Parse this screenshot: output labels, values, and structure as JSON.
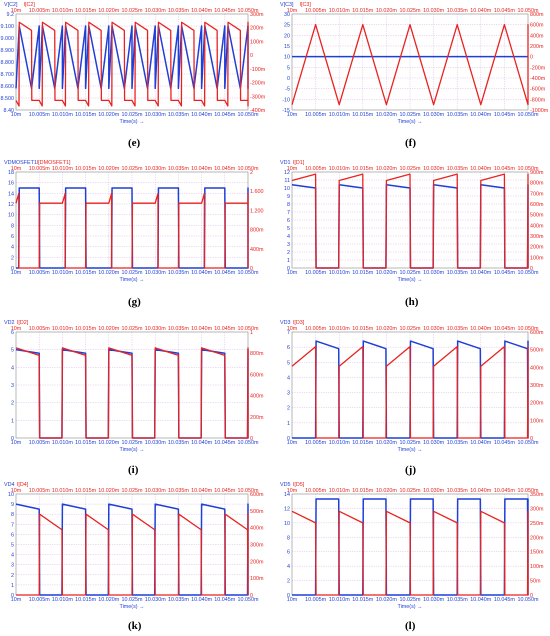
{
  "colors": {
    "blue": "#1f3fd6",
    "red": "#e8231f",
    "grid": "#c58fd6",
    "frame": "#888888"
  },
  "time_axis": {
    "ticks_top": [
      "10m",
      "10.005m",
      "10.010m",
      "10.015m",
      "10.020m",
      "10.025m",
      "10.030m",
      "10.035m",
      "10.040m",
      "10.045m",
      "10.050m"
    ],
    "ticks_bottom": [
      "10m",
      "10.005m",
      "10.010m",
      "10.015m",
      "10.020m",
      "10.025m",
      "10.030m",
      "10.035m",
      "10.040m",
      "10.045m",
      "10.050m"
    ],
    "label": "Time(s)",
    "arrow": "→"
  },
  "chart_data": [
    {
      "type": "line",
      "caption": "(e)",
      "legend": [
        "V[C2]",
        "I[C2]"
      ],
      "left_ticks": [
        "9.2",
        "9.100",
        "9.000",
        "8.900",
        "8.800",
        "8.700",
        "8.600",
        "8.500",
        "8.40"
      ],
      "right_ticks": [
        "300m",
        "200m",
        "100m",
        "0",
        "-100m",
        "-200m",
        "-300m",
        "-400m"
      ],
      "x": [
        0.01,
        0.0105
      ],
      "period": 5e-05,
      "series": [
        {
          "name": "V[C2]",
          "color": "blue",
          "ylim": [
            8.4,
            9.2
          ],
          "shape": "triangle",
          "points": [
            [
              0.0,
              8.58
            ],
            [
              0.14,
              9.1
            ],
            [
              0.67,
              8.58
            ],
            [
              1.0,
              9.1
            ]
          ]
        },
        {
          "name": "I[C2]",
          "color": "red",
          "ylim": [
            -0.4,
            0.3
          ],
          "shape": "sawtooth",
          "points": [
            [
              0.0,
              -0.33
            ],
            [
              0.13,
              -0.37
            ],
            [
              0.14,
              0.24
            ],
            [
              0.67,
              0.18
            ],
            [
              0.68,
              -0.33
            ],
            [
              1.0,
              -0.33
            ]
          ]
        }
      ]
    },
    {
      "type": "line",
      "caption": "(f)",
      "legend": [
        "V[C3]",
        "I[C3]"
      ],
      "left_ticks": [
        "30",
        "25",
        "20",
        "15",
        "10",
        "5",
        "0",
        "-5",
        "-10",
        "-15"
      ],
      "right_ticks": [
        "800m",
        "600m",
        "400m",
        "200m",
        "0",
        "-200m",
        "-400m",
        "-600m",
        "-800m",
        "-1000m"
      ],
      "x": [
        0.01,
        0.0105
      ],
      "period": 0.0001,
      "series": [
        {
          "name": "V[C3]",
          "color": "blue",
          "ylim": [
            -15,
            30
          ],
          "shape": "flat",
          "points": [
            [
              0.0,
              10
            ],
            [
              1.0,
              10
            ]
          ]
        },
        {
          "name": "I[C3]",
          "color": "red",
          "ylim": [
            -1.0,
            0.8
          ],
          "shape": "triangle",
          "points": [
            [
              0.0,
              -0.9
            ],
            [
              0.5,
              0.6
            ],
            [
              1.0,
              -0.9
            ]
          ]
        }
      ]
    },
    {
      "type": "line",
      "caption": "(g)",
      "legend": [
        "VDMOSFET1",
        "I[DMOSFET1]"
      ],
      "left_ticks": [
        "18",
        "16",
        "14",
        "12",
        "10",
        "8",
        "6",
        "4",
        "2",
        "0"
      ],
      "right_ticks": [
        "2",
        "1.600",
        "1.200",
        "800m",
        "400m",
        "0"
      ],
      "x": [
        0.01,
        0.0105
      ],
      "period": 0.0001,
      "series": [
        {
          "name": "VDMOSFET1",
          "color": "blue",
          "ylim": [
            0,
            18
          ],
          "shape": "square",
          "points": [
            [
              0.0,
              0
            ],
            [
              0.06,
              0
            ],
            [
              0.07,
              15.0
            ],
            [
              0.5,
              15.0
            ],
            [
              0.51,
              0
            ],
            [
              1.0,
              0
            ]
          ]
        },
        {
          "name": "I[DMOSFET1]",
          "color": "red",
          "ylim": [
            0,
            2
          ],
          "shape": "sawtooth",
          "points": [
            [
              0.0,
              1.35
            ],
            [
              0.06,
              1.55
            ],
            [
              0.061,
              0
            ],
            [
              0.5,
              0
            ],
            [
              0.51,
              1.35
            ],
            [
              1.0,
              1.35
            ]
          ]
        }
      ]
    },
    {
      "type": "line",
      "caption": "(h)",
      "legend": [
        "VD1",
        "I[D1]"
      ],
      "left_ticks": [
        "12",
        "11",
        "10",
        "9",
        "8",
        "7",
        "6",
        "5",
        "4",
        "3",
        "2",
        "1",
        "0"
      ],
      "right_ticks": [
        "900m",
        "800m",
        "700m",
        "600m",
        "500m",
        "400m",
        "300m",
        "200m",
        "100m",
        "0"
      ],
      "x": [
        0.01,
        0.0105
      ],
      "period": 0.0001,
      "series": [
        {
          "name": "VD1",
          "color": "blue",
          "ylim": [
            0,
            12
          ],
          "shape": "square",
          "points": [
            [
              0.0,
              10.4
            ],
            [
              0.5,
              10.0
            ],
            [
              0.51,
              0
            ],
            [
              0.99,
              0
            ],
            [
              1.0,
              10.4
            ]
          ]
        },
        {
          "name": "I[D1]",
          "color": "red",
          "ylim": [
            0,
            0.9
          ],
          "shape": "sawtooth",
          "points": [
            [
              0.0,
              0.82
            ],
            [
              0.5,
              0.88
            ],
            [
              0.51,
              0
            ],
            [
              0.99,
              0
            ],
            [
              1.0,
              0.75
            ]
          ]
        }
      ]
    },
    {
      "type": "line",
      "caption": "(i)",
      "legend": [
        "VD2",
        "I[D2]"
      ],
      "left_ticks": [
        "6",
        "5",
        "4",
        "3",
        "2",
        "1",
        "0"
      ],
      "right_ticks": [
        "1",
        "800m",
        "600m",
        "400m",
        "200m",
        "0"
      ],
      "x": [
        0.01,
        0.0105
      ],
      "period": 0.0001,
      "series": [
        {
          "name": "VD2",
          "color": "blue",
          "ylim": [
            0,
            6
          ],
          "shape": "square",
          "points": [
            [
              0.0,
              5.0
            ],
            [
              0.5,
              4.8
            ],
            [
              0.51,
              0
            ],
            [
              0.99,
              0
            ],
            [
              1.0,
              5.0
            ]
          ]
        },
        {
          "name": "I[D2]",
          "color": "red",
          "ylim": [
            0,
            1
          ],
          "shape": "sawtooth",
          "points": [
            [
              0.0,
              0.85
            ],
            [
              0.5,
              0.78
            ],
            [
              0.51,
              0
            ],
            [
              0.99,
              0
            ],
            [
              1.0,
              0.85
            ]
          ]
        }
      ]
    },
    {
      "type": "line",
      "caption": "(j)",
      "legend": [
        "VD3",
        "I[D3]"
      ],
      "left_ticks": [
        "7",
        "6",
        "5",
        "4",
        "3",
        "2",
        "1",
        "0"
      ],
      "right_ticks": [
        "600m",
        "500m",
        "400m",
        "300m",
        "200m",
        "100m",
        "0"
      ],
      "x": [
        0.01,
        0.0105
      ],
      "period": 0.0001,
      "series": [
        {
          "name": "VD3",
          "color": "blue",
          "ylim": [
            0,
            7
          ],
          "shape": "square",
          "points": [
            [
              0.0,
              0
            ],
            [
              0.5,
              0
            ],
            [
              0.51,
              6.4
            ],
            [
              0.99,
              5.9
            ],
            [
              1.0,
              0
            ]
          ]
        },
        {
          "name": "I[D3]",
          "color": "red",
          "ylim": [
            0,
            0.65
          ],
          "shape": "sawtooth",
          "points": [
            [
              0.0,
              0.44
            ],
            [
              0.5,
              0.56
            ],
            [
              0.51,
              0
            ],
            [
              0.99,
              0
            ],
            [
              1.0,
              0.44
            ]
          ]
        }
      ]
    },
    {
      "type": "line",
      "caption": "(k)",
      "legend": [
        "VD4",
        "I[D4]"
      ],
      "left_ticks": [
        "10",
        "9",
        "8",
        "7",
        "6",
        "5",
        "4",
        "3",
        "2",
        "1",
        "0"
      ],
      "right_ticks": [
        "600m",
        "500m",
        "400m",
        "300m",
        "200m",
        "100m",
        "0"
      ],
      "x": [
        0.01,
        0.0105
      ],
      "period": 0.0001,
      "series": [
        {
          "name": "VD4",
          "color": "blue",
          "ylim": [
            0,
            10
          ],
          "shape": "square",
          "points": [
            [
              0.0,
              9.0
            ],
            [
              0.5,
              8.5
            ],
            [
              0.51,
              0
            ],
            [
              0.99,
              0
            ],
            [
              1.0,
              9.0
            ]
          ]
        },
        {
          "name": "I[D4]",
          "color": "red",
          "ylim": [
            0,
            0.65
          ],
          "shape": "sawtooth",
          "points": [
            [
              0.0,
              0.0
            ],
            [
              0.5,
              0.0
            ],
            [
              0.51,
              0.52
            ],
            [
              0.99,
              0.42
            ],
            [
              1.0,
              0.0
            ]
          ]
        }
      ]
    },
    {
      "type": "line",
      "caption": "(l)",
      "legend": [
        "VD5",
        "I[D5]"
      ],
      "left_ticks": [
        "14",
        "12",
        "10",
        "8",
        "6",
        "4",
        "2",
        "0"
      ],
      "right_ticks": [
        "350m",
        "300m",
        "250m",
        "200m",
        "150m",
        "100m",
        "50m",
        "0"
      ],
      "x": [
        0.01,
        0.0105
      ],
      "period": 0.0001,
      "series": [
        {
          "name": "VD5",
          "color": "blue",
          "ylim": [
            0,
            14
          ],
          "shape": "square",
          "points": [
            [
              0.0,
              0
            ],
            [
              0.5,
              0
            ],
            [
              0.51,
              13.3
            ],
            [
              0.99,
              13.3
            ],
            [
              1.0,
              0
            ]
          ]
        },
        {
          "name": "I[D5]",
          "color": "red",
          "ylim": [
            0,
            0.35
          ],
          "shape": "sawtooth",
          "points": [
            [
              0.0,
              0.29
            ],
            [
              0.5,
              0.25
            ],
            [
              0.51,
              0
            ],
            [
              0.99,
              0
            ],
            [
              1.0,
              0.29
            ]
          ]
        }
      ]
    }
  ]
}
